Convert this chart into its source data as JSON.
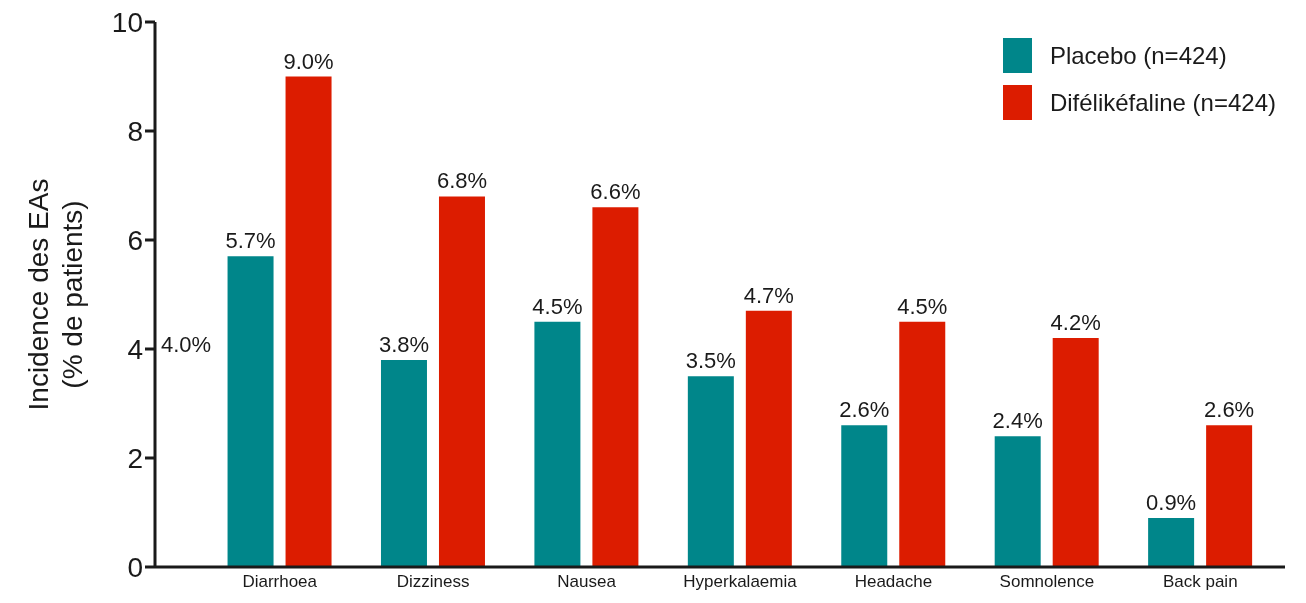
{
  "chart_data": {
    "type": "bar",
    "ylabel": "Incidence des EAs\n(% de patients)",
    "categories": [
      "Diarrhoea",
      "Dizziness",
      "Nausea",
      "Hyperkalaemia",
      "Headache",
      "Somnolence",
      "Back pain"
    ],
    "series": [
      {
        "name": "Placebo (n=424)",
        "color": "#00868a",
        "values": [
          5.7,
          3.8,
          4.5,
          3.5,
          2.6,
          2.4,
          0.9
        ],
        "value_labels": [
          "5.7%",
          "3.8%",
          "4.5%",
          "3.5%",
          "2.6%",
          "2.4%",
          "0.9%"
        ]
      },
      {
        "name": "Difélikéfaline (n=424)",
        "color": "#dc1c00",
        "values": [
          9.0,
          6.8,
          6.6,
          4.7,
          4.5,
          4.2,
          2.6
        ],
        "value_labels": [
          "9.0%",
          "6.8%",
          "6.6%",
          "4.7%",
          "4.5%",
          "4.2%",
          "2.6%"
        ]
      }
    ],
    "ylim": [
      0,
      10
    ],
    "yticks": [
      0,
      2,
      4,
      6,
      8,
      10
    ],
    "grid": false,
    "legend": "top right",
    "annotations": [
      "4.0%"
    ]
  }
}
